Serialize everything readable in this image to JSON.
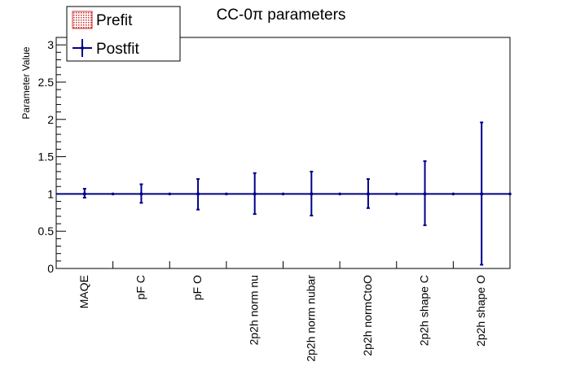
{
  "chart_data": {
    "type": "scatter",
    "title": "CC-0π parameters",
    "xlabel": "",
    "ylabel": "Parameter Value",
    "ylim": [
      0,
      3.1
    ],
    "y_ticks": [
      0,
      0.5,
      1,
      1.5,
      2,
      2.5,
      3
    ],
    "grid": false,
    "legend_position": "top-left",
    "categories": [
      "MAQE",
      "pF C",
      "pF O",
      "2p2h norm nu",
      "2p2h norm nubar",
      "2p2h normCtoO",
      "2p2h shape C",
      "2p2h shape O"
    ],
    "series": [
      {
        "name": "Prefit",
        "color": "#cc3333",
        "values": [
          1,
          1,
          1,
          1,
          1,
          1,
          1,
          1
        ]
      },
      {
        "name": "Postfit",
        "color": "#00008b",
        "values": [
          1.0,
          1.0,
          1.0,
          1.0,
          1.0,
          1.0,
          1.0,
          1.0
        ],
        "err_low": [
          0.95,
          0.88,
          0.79,
          0.73,
          0.71,
          0.81,
          0.58,
          0.05
        ],
        "err_high": [
          1.07,
          1.13,
          1.2,
          1.28,
          1.3,
          1.2,
          1.44,
          1.96
        ]
      }
    ]
  }
}
